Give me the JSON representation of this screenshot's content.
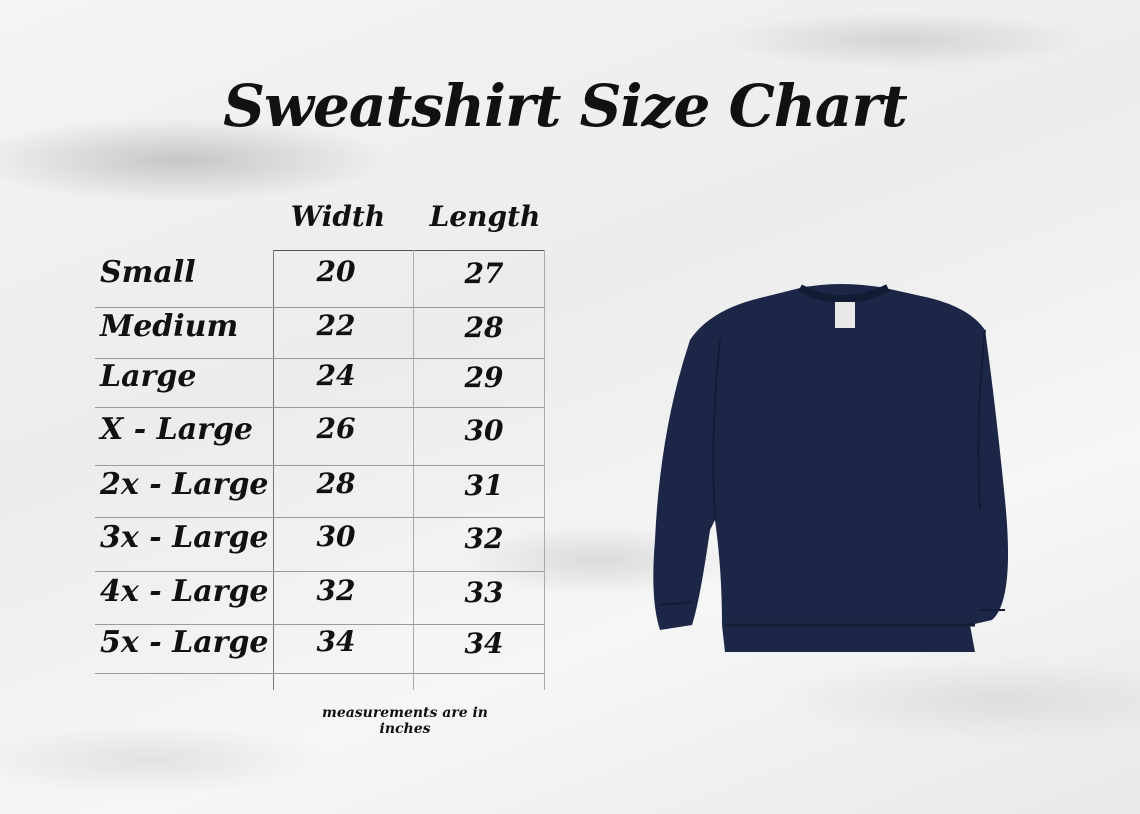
{
  "title": "Sweatshirt Size Chart",
  "columns": [
    "Width",
    "Length"
  ],
  "rows": [
    {
      "size": "Small",
      "width": "20",
      "length": "27"
    },
    {
      "size": "Medium",
      "width": "22",
      "length": "28"
    },
    {
      "size": "Large",
      "width": "24",
      "length": "29"
    },
    {
      "size": "X - Large",
      "width": "26",
      "length": "30"
    },
    {
      "size": "2x - Large",
      "width": "28",
      "length": "31"
    },
    {
      "size": "3x - Large",
      "width": "30",
      "length": "32"
    },
    {
      "size": "4x - Large",
      "width": "32",
      "length": "33"
    },
    {
      "size": "5x - Large",
      "width": "34",
      "length": "34"
    }
  ],
  "note": "measurements are in inches",
  "sweatshirt_color": "#1c2747"
}
